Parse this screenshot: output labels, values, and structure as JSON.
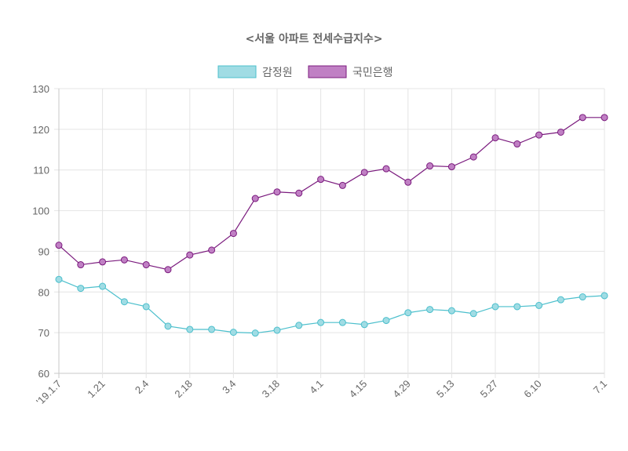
{
  "chart_data": {
    "type": "line",
    "title": "<서울 아파트 전세수급지수>",
    "xlabel": "",
    "ylabel": "",
    "ylim": [
      60,
      130
    ],
    "y_ticks": [
      60,
      70,
      80,
      90,
      100,
      110,
      120,
      130
    ],
    "grid": true,
    "legend_position": "top",
    "x": [
      "'19.1.7",
      "1.14",
      "1.21",
      "1.28",
      "2.4",
      "2.11",
      "2.18",
      "2.25",
      "3.4",
      "3.11",
      "3.18",
      "3.25",
      "4.1",
      "4.8",
      "4.15",
      "4.22",
      "4.29",
      "5.6",
      "5.13",
      "5.20",
      "5.27",
      "6.3",
      "6.10",
      "6.17",
      "6.24",
      "7.1"
    ],
    "x_tick_labels": [
      "'19.1.7",
      "",
      "1.21",
      "",
      "2.4",
      "",
      "2.18",
      "",
      "3.4",
      "",
      "3.18",
      "",
      "4.1",
      "",
      "4.15",
      "",
      "4.29",
      "",
      "5.13",
      "",
      "5.27",
      "",
      "6.10",
      "",
      "",
      "7.1"
    ],
    "series": [
      {
        "name": "감정원",
        "color": "#4bbfcc",
        "fill": "#a0dce4",
        "values": [
          83.1,
          80.9,
          81.4,
          77.6,
          76.4,
          71.6,
          70.8,
          70.8,
          70.1,
          69.9,
          70.6,
          71.8,
          72.5,
          72.5,
          72.0,
          73.0,
          74.9,
          75.7,
          75.4,
          74.7,
          76.4,
          76.4,
          76.7,
          78.1,
          78.8,
          79.1
        ]
      },
      {
        "name": "국민은행",
        "color": "#7b1b7e",
        "fill": "#c080c4",
        "values": [
          91.5,
          86.7,
          87.4,
          87.9,
          86.7,
          85.5,
          89.1,
          90.3,
          94.4,
          103.0,
          104.6,
          104.3,
          107.7,
          106.2,
          109.4,
          110.3,
          107.0,
          111.0,
          110.8,
          113.2,
          117.9,
          116.4,
          118.6,
          119.3,
          122.9,
          122.9
        ]
      }
    ]
  }
}
